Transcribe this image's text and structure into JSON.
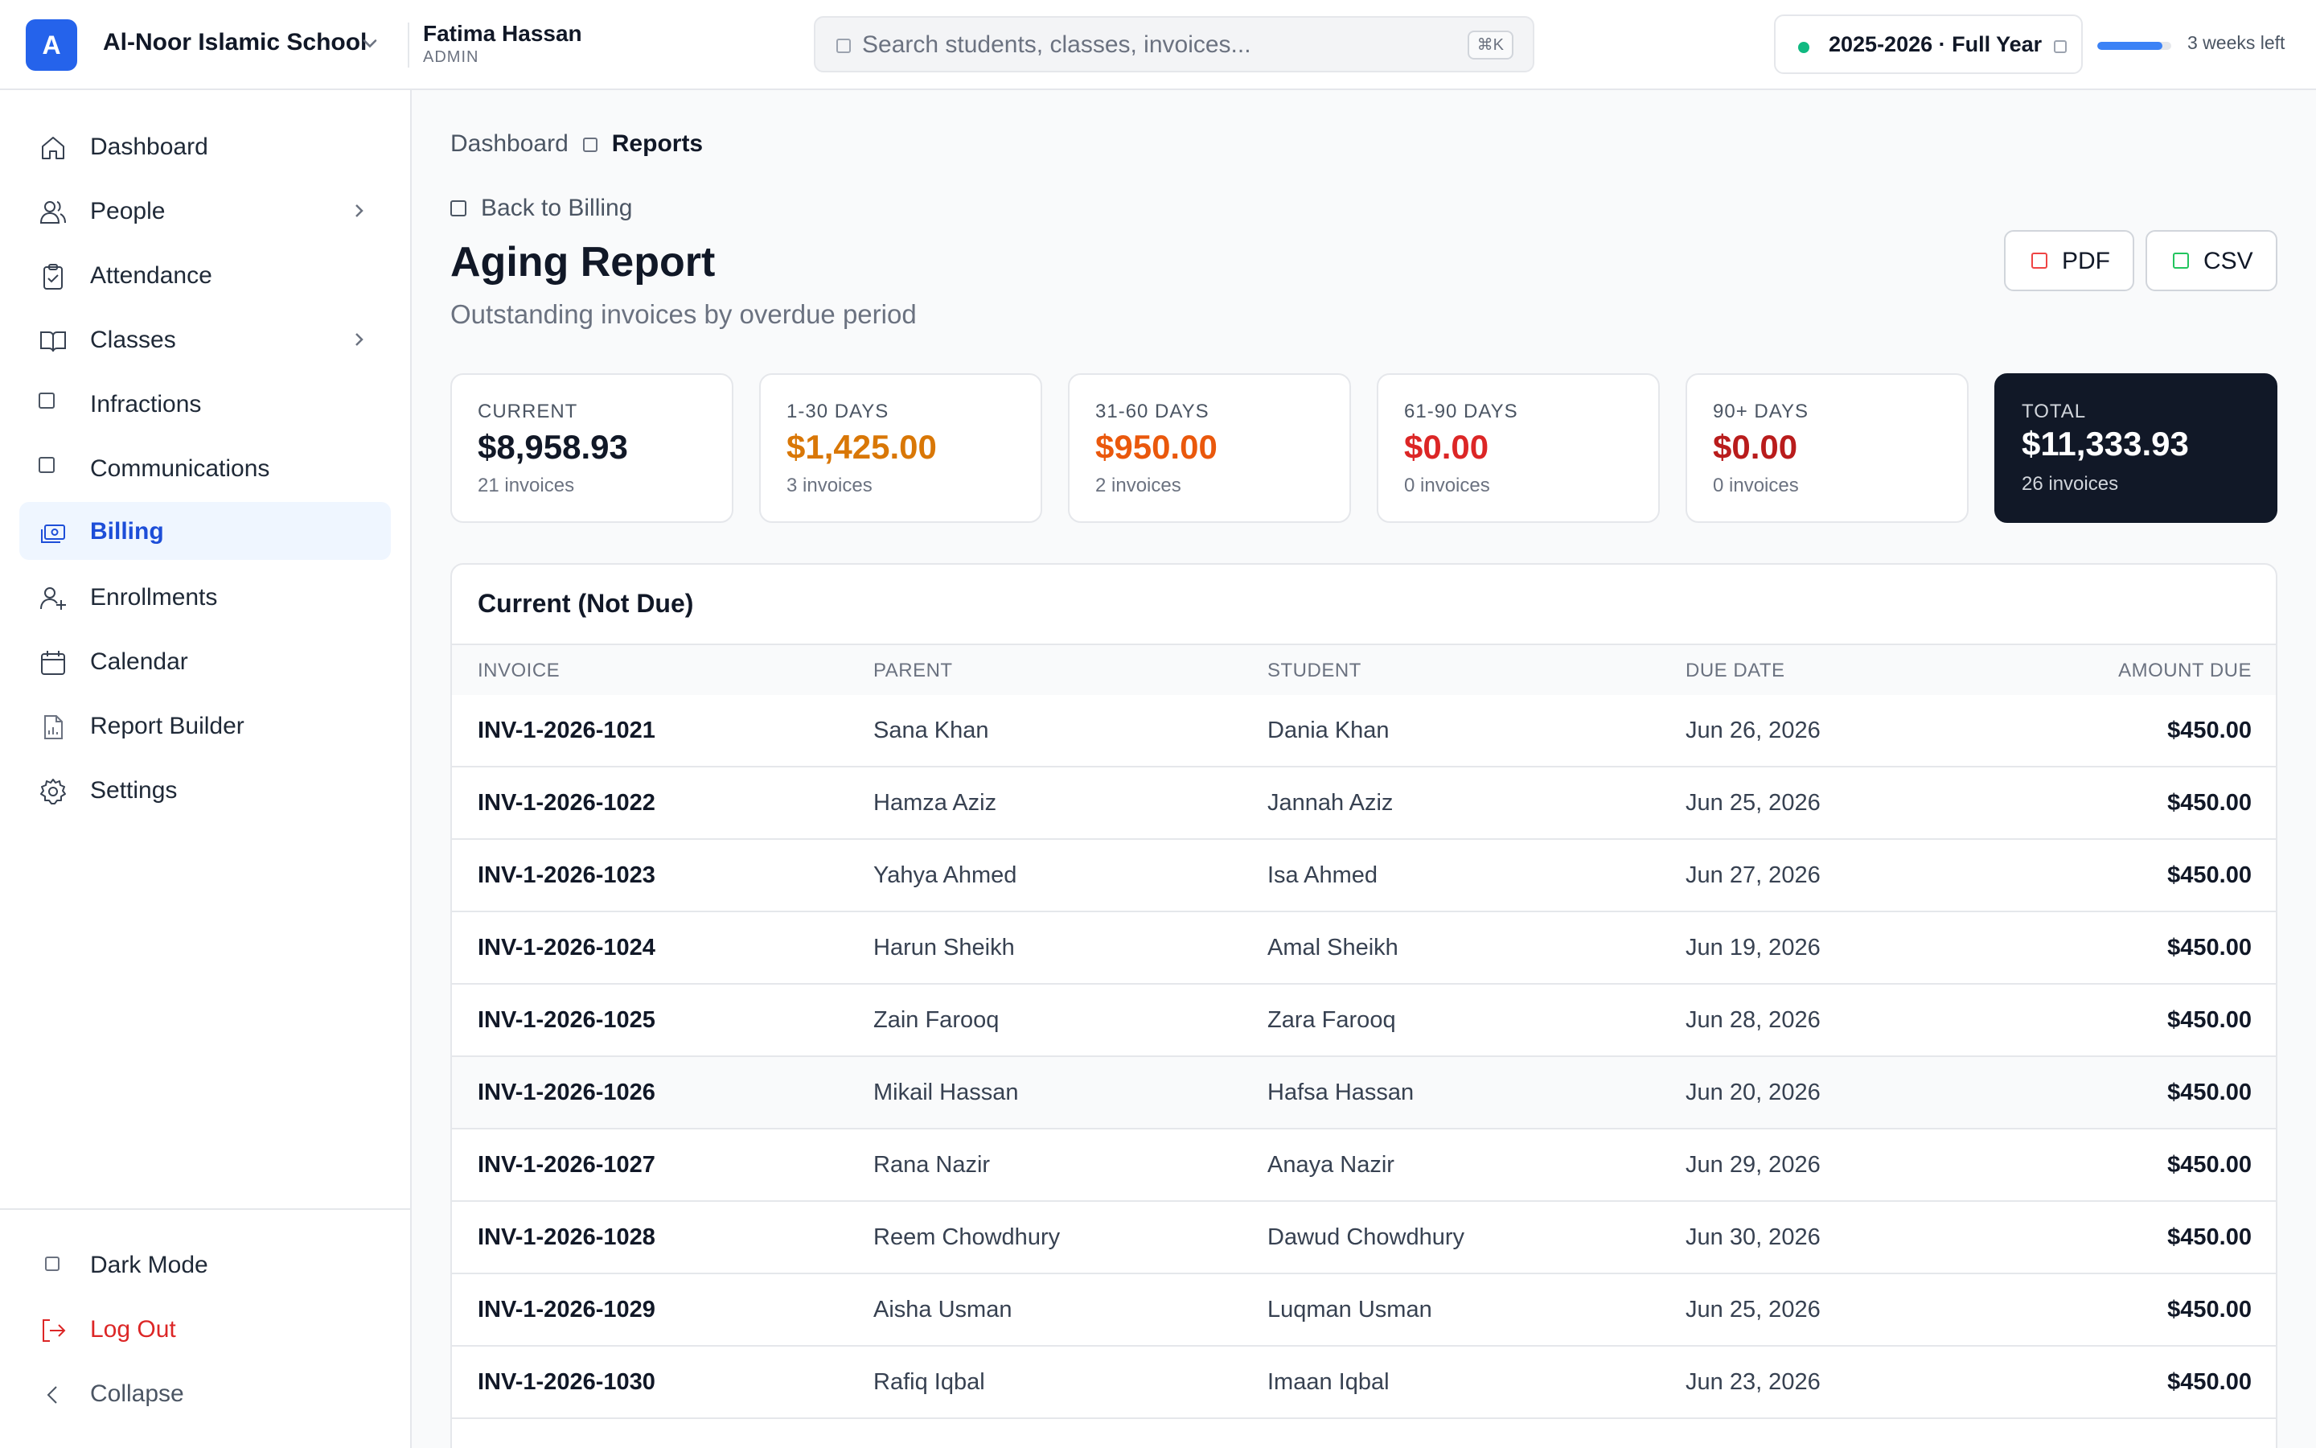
{
  "header": {
    "logo_letter": "A",
    "school_name": "Al-Noor Islamic School",
    "user_name": "Fatima Hassan",
    "user_role": "ADMIN",
    "search_placeholder": "Search students, classes, invoices...",
    "search_shortcut": "⌘K",
    "year_label": "2025-2026 · Full Year",
    "year_progress": 0.88,
    "year_remaining": "3 weeks left",
    "colors": {
      "brand": "#2563eb",
      "year_dot": "#10b981",
      "progress": "#3b82f6"
    }
  },
  "sidebar": {
    "items": [
      {
        "label": "Dashboard",
        "icon": "home-icon"
      },
      {
        "label": "People",
        "icon": "users-icon",
        "has_submenu": true
      },
      {
        "label": "Attendance",
        "icon": "clipboard-check-icon"
      },
      {
        "label": "Classes",
        "icon": "book-icon",
        "has_submenu": true
      },
      {
        "label": "Infractions",
        "icon": "square-icon"
      },
      {
        "label": "Communications",
        "icon": "square-icon"
      },
      {
        "label": "Billing",
        "icon": "billing-icon",
        "active": true
      },
      {
        "label": "Enrollments",
        "icon": "user-plus-icon"
      },
      {
        "label": "Calendar",
        "icon": "calendar-icon"
      },
      {
        "label": "Report Builder",
        "icon": "report-icon"
      },
      {
        "label": "Settings",
        "icon": "gear-icon"
      }
    ],
    "footer": {
      "dark_mode": "Dark Mode",
      "logout": "Log Out",
      "collapse": "Collapse"
    }
  },
  "main": {
    "breadcrumb": {
      "parent": "Dashboard",
      "current": "Reports"
    },
    "back_link": "Back to Billing",
    "title": "Aging Report",
    "subtitle": "Outstanding invoices by overdue period",
    "actions": {
      "pdf": "PDF",
      "csv": "CSV"
    },
    "summary": [
      {
        "label": "CURRENT",
        "value": "$8,958.93",
        "count": "21 invoices",
        "color": "#111827"
      },
      {
        "label": "1-30 DAYS",
        "value": "$1,425.00",
        "count": "3 invoices",
        "color": "#d97706"
      },
      {
        "label": "31-60 DAYS",
        "value": "$950.00",
        "count": "2 invoices",
        "color": "#ea580c"
      },
      {
        "label": "61-90 DAYS",
        "value": "$0.00",
        "count": "0 invoices",
        "color": "#dc2626"
      },
      {
        "label": "90+ DAYS",
        "value": "$0.00",
        "count": "0 invoices",
        "color": "#b91c1c"
      },
      {
        "label": "TOTAL",
        "value": "$11,333.93",
        "count": "26 invoices",
        "color": "#ffffff"
      }
    ],
    "table": {
      "title": "Current (Not Due)",
      "columns": [
        "INVOICE",
        "PARENT",
        "STUDENT",
        "DUE DATE",
        "AMOUNT DUE"
      ],
      "rows": [
        {
          "invoice": "INV-1-2026-1021",
          "parent": "Sana Khan",
          "student": "Dania Khan",
          "due": "Jun 26, 2026",
          "amount": "$450.00"
        },
        {
          "invoice": "INV-1-2026-1022",
          "parent": "Hamza Aziz",
          "student": "Jannah Aziz",
          "due": "Jun 25, 2026",
          "amount": "$450.00"
        },
        {
          "invoice": "INV-1-2026-1023",
          "parent": "Yahya Ahmed",
          "student": "Isa Ahmed",
          "due": "Jun 27, 2026",
          "amount": "$450.00"
        },
        {
          "invoice": "INV-1-2026-1024",
          "parent": "Harun Sheikh",
          "student": "Amal Sheikh",
          "due": "Jun 19, 2026",
          "amount": "$450.00"
        },
        {
          "invoice": "INV-1-2026-1025",
          "parent": "Zain Farooq",
          "student": "Zara Farooq",
          "due": "Jun 28, 2026",
          "amount": "$450.00"
        },
        {
          "invoice": "INV-1-2026-1026",
          "parent": "Mikail Hassan",
          "student": "Hafsa Hassan",
          "due": "Jun 20, 2026",
          "amount": "$450.00"
        },
        {
          "invoice": "INV-1-2026-1027",
          "parent": "Rana Nazir",
          "student": "Anaya Nazir",
          "due": "Jun 29, 2026",
          "amount": "$450.00"
        },
        {
          "invoice": "INV-1-2026-1028",
          "parent": "Reem Chowdhury",
          "student": "Dawud Chowdhury",
          "due": "Jun 30, 2026",
          "amount": "$450.00"
        },
        {
          "invoice": "INV-1-2026-1029",
          "parent": "Aisha Usman",
          "student": "Luqman Usman",
          "due": "Jun 25, 2026",
          "amount": "$450.00"
        },
        {
          "invoice": "INV-1-2026-1030",
          "parent": "Rafiq Iqbal",
          "student": "Imaan Iqbal",
          "due": "Jun 23, 2026",
          "amount": "$450.00"
        }
      ]
    }
  }
}
